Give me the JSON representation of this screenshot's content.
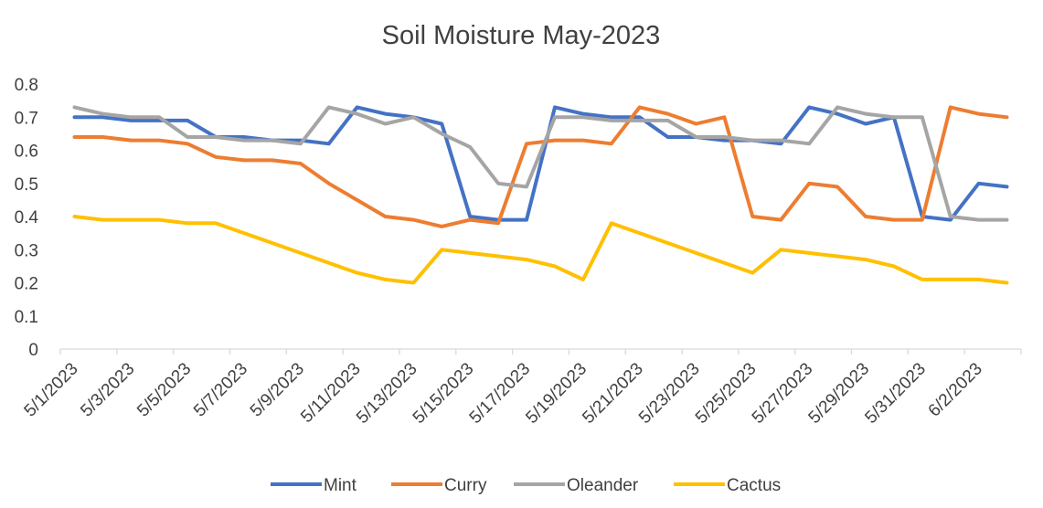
{
  "chart_data": {
    "type": "line",
    "title": "Soil Moisture May-2023",
    "xlabel": "",
    "ylabel": "",
    "ylim": [
      0,
      0.8
    ],
    "yticks": [
      "0",
      "0.1",
      "0.2",
      "0.3",
      "0.4",
      "0.5",
      "0.6",
      "0.7",
      "0.8"
    ],
    "x": [
      "5/1/2023",
      "5/2/2023",
      "5/3/2023",
      "5/4/2023",
      "5/5/2023",
      "5/6/2023",
      "5/7/2023",
      "5/8/2023",
      "5/9/2023",
      "5/10/2023",
      "5/11/2023",
      "5/12/2023",
      "5/13/2023",
      "5/14/2023",
      "5/15/2023",
      "5/16/2023",
      "5/17/2023",
      "5/18/2023",
      "5/19/2023",
      "5/20/2023",
      "5/21/2023",
      "5/22/2023",
      "5/23/2023",
      "5/24/2023",
      "5/25/2023",
      "5/26/2023",
      "5/27/2023",
      "5/28/2023",
      "5/29/2023",
      "5/30/2023",
      "5/31/2023",
      "6/1/2023",
      "6/2/2023",
      "6/3/2023"
    ],
    "xtick_labels": [
      "5/1/2023",
      "5/3/2023",
      "5/5/2023",
      "5/7/2023",
      "5/9/2023",
      "5/11/2023",
      "5/13/2023",
      "5/15/2023",
      "5/17/2023",
      "5/19/2023",
      "5/21/2023",
      "5/23/2023",
      "5/25/2023",
      "5/27/2023",
      "5/29/2023",
      "5/31/2023",
      "6/2/2023"
    ],
    "grid": false,
    "legend_position": "bottom",
    "series": [
      {
        "name": "Mint",
        "color": "#4472C4",
        "values": [
          0.7,
          0.7,
          0.69,
          0.69,
          0.69,
          0.64,
          0.64,
          0.63,
          0.63,
          0.62,
          0.73,
          0.71,
          0.7,
          0.68,
          0.4,
          0.39,
          0.39,
          0.73,
          0.71,
          0.7,
          0.7,
          0.64,
          0.64,
          0.63,
          0.63,
          0.62,
          0.73,
          0.71,
          0.68,
          0.7,
          0.4,
          0.39,
          0.5,
          0.49
        ]
      },
      {
        "name": "Curry",
        "color": "#ED7D31",
        "values": [
          0.64,
          0.64,
          0.63,
          0.63,
          0.62,
          0.58,
          0.57,
          0.57,
          0.56,
          0.5,
          0.45,
          0.4,
          0.39,
          0.37,
          0.39,
          0.38,
          0.62,
          0.63,
          0.63,
          0.62,
          0.73,
          0.71,
          0.68,
          0.7,
          0.4,
          0.39,
          0.5,
          0.49,
          0.4,
          0.39,
          0.39,
          0.73,
          0.71,
          0.7
        ]
      },
      {
        "name": "Oleander",
        "color": "#A5A5A5",
        "values": [
          0.73,
          0.71,
          0.7,
          0.7,
          0.64,
          0.64,
          0.63,
          0.63,
          0.62,
          0.73,
          0.71,
          0.68,
          0.7,
          0.65,
          0.61,
          0.5,
          0.49,
          0.7,
          0.7,
          0.69,
          0.69,
          0.69,
          0.64,
          0.64,
          0.63,
          0.63,
          0.62,
          0.73,
          0.71,
          0.7,
          0.7,
          0.4,
          0.39,
          0.39
        ]
      },
      {
        "name": "Cactus",
        "color": "#FFC000",
        "values": [
          0.4,
          0.39,
          0.39,
          0.39,
          0.38,
          0.38,
          0.35,
          0.32,
          0.29,
          0.26,
          0.23,
          0.21,
          0.2,
          0.3,
          0.29,
          0.28,
          0.27,
          0.25,
          0.21,
          0.38,
          0.35,
          0.32,
          0.29,
          0.26,
          0.23,
          0.3,
          0.29,
          0.28,
          0.27,
          0.25,
          0.21,
          0.21,
          0.21,
          0.2
        ]
      }
    ]
  }
}
